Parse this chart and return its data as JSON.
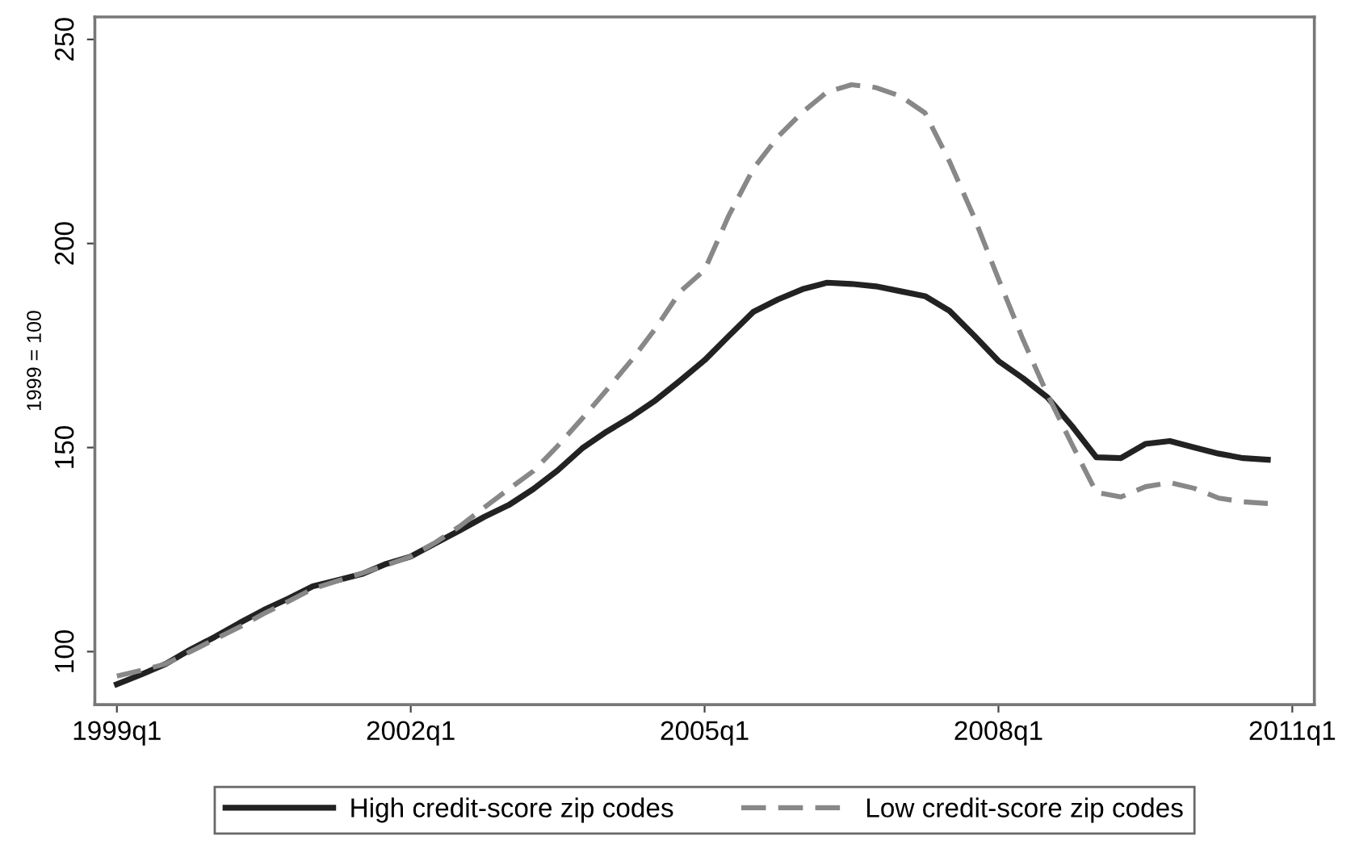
{
  "chart_data": {
    "type": "line",
    "ylabel": "1999 = 100",
    "categories": [
      "1999q1",
      null,
      null,
      null,
      null,
      null,
      null,
      null,
      null,
      null,
      null,
      null,
      "2002q1",
      null,
      null,
      null,
      null,
      null,
      null,
      null,
      null,
      null,
      null,
      null,
      "2005q1",
      null,
      null,
      null,
      null,
      null,
      null,
      null,
      null,
      null,
      null,
      null,
      "2008q1",
      null,
      null,
      null,
      null,
      null,
      null,
      null,
      null,
      null,
      null,
      null,
      "2011q1"
    ],
    "ylim": [
      87,
      255.5
    ],
    "yticks": [
      100,
      150,
      200,
      250
    ],
    "grid": false,
    "legend": "bottom",
    "series": [
      {
        "name": "High credit-score zip codes",
        "color": "#222222",
        "line_style": "solid",
        "values": [
          92,
          94.4,
          97,
          100.5,
          103.6,
          107,
          110.2,
          113,
          116,
          117.5,
          119,
          121.5,
          123.3,
          126.5,
          129.7,
          133,
          135.9,
          139.8,
          144.4,
          149.8,
          153.9,
          157.5,
          161.6,
          166.4,
          171.4,
          177.4,
          183.3,
          186.3,
          188.8,
          190.4,
          190.1,
          189.5,
          188.3,
          187.1,
          183.5,
          177.5,
          171.2,
          167,
          162.3,
          155.3,
          147.6,
          147.4,
          150.9,
          151.6,
          150,
          148.5,
          147.4,
          147,
          null
        ]
      },
      {
        "name": "Low credit-score zip codes",
        "color": "#888888",
        "line_style": "dashed",
        "values": [
          94,
          95.4,
          97,
          100,
          103,
          106,
          109.3,
          112.3,
          115.4,
          117.3,
          119.2,
          121.2,
          123.3,
          126.7,
          130.7,
          135.3,
          139.8,
          144.2,
          150.4,
          157.1,
          164.1,
          171.3,
          179.2,
          188.2,
          193.5,
          207,
          218.4,
          226.2,
          232.2,
          237.1,
          238.9,
          238.2,
          236.1,
          232,
          220.1,
          206.5,
          191.3,
          176.5,
          163,
          150.8,
          139,
          137.9,
          140.4,
          141.4,
          140,
          137.6,
          136.7,
          136.3,
          null
        ]
      }
    ]
  }
}
